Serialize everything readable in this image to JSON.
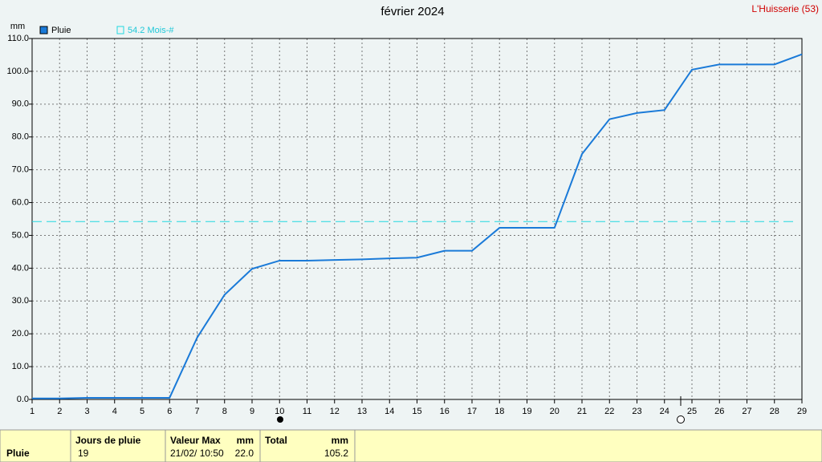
{
  "chart_data": {
    "type": "line",
    "title": "février 2024",
    "location": "L'Huisserie (53)",
    "y_unit": "mm",
    "x": [
      1,
      2,
      3,
      4,
      5,
      6,
      7,
      8,
      9,
      10,
      11,
      12,
      13,
      14,
      15,
      16,
      17,
      18,
      19,
      20,
      21,
      22,
      23,
      24,
      25,
      26,
      27,
      28,
      29
    ],
    "xlim": [
      1,
      29
    ],
    "xticks": [
      1,
      2,
      3,
      4,
      5,
      6,
      7,
      8,
      9,
      10,
      11,
      12,
      13,
      14,
      15,
      16,
      17,
      18,
      19,
      20,
      21,
      22,
      23,
      24,
      25,
      26,
      27,
      28,
      29
    ],
    "series": [
      {
        "name": "Pluie",
        "color": "#1a7ad8",
        "values": [
          0.3,
          0.3,
          0.5,
          0.5,
          0.5,
          0.5,
          18.8,
          31.9,
          39.8,
          42.3,
          42.3,
          42.5,
          42.7,
          43.0,
          43.2,
          45.3,
          45.3,
          52.3,
          52.3,
          52.3,
          74.8,
          85.4,
          87.3,
          88.2,
          100.5,
          102.1,
          102.1,
          102.1,
          105.2
        ]
      }
    ],
    "reference_lines": [
      {
        "value": 54.2,
        "label": "54.2 Mois-#",
        "color": "#20d8e0"
      }
    ],
    "ylim": [
      0,
      110
    ],
    "yticks": [
      {
        "value": 0,
        "label": "0.0"
      },
      {
        "value": 10,
        "label": "10.0"
      },
      {
        "value": 20,
        "label": "20.0"
      },
      {
        "value": 30,
        "label": "30.0"
      },
      {
        "value": 40,
        "label": "40.0"
      },
      {
        "value": 50,
        "label": "50.0"
      },
      {
        "value": 60,
        "label": "60.0"
      },
      {
        "value": 70,
        "label": "70.0"
      },
      {
        "value": 80,
        "label": "80.0"
      },
      {
        "value": 90,
        "label": "90.0"
      },
      {
        "value": 100,
        "label": "100.0"
      },
      {
        "value": 110,
        "label": "110.0"
      }
    ],
    "grid": true
  },
  "table": {
    "row_label": "Pluie",
    "columns": [
      {
        "header": "Jours de pluie",
        "value": "19"
      },
      {
        "header": "Valeur Max",
        "unit": "mm",
        "date": "21/02/ 10:50",
        "value": "22.0"
      },
      {
        "header": "Total",
        "unit": "mm",
        "value": "105.2"
      }
    ]
  }
}
